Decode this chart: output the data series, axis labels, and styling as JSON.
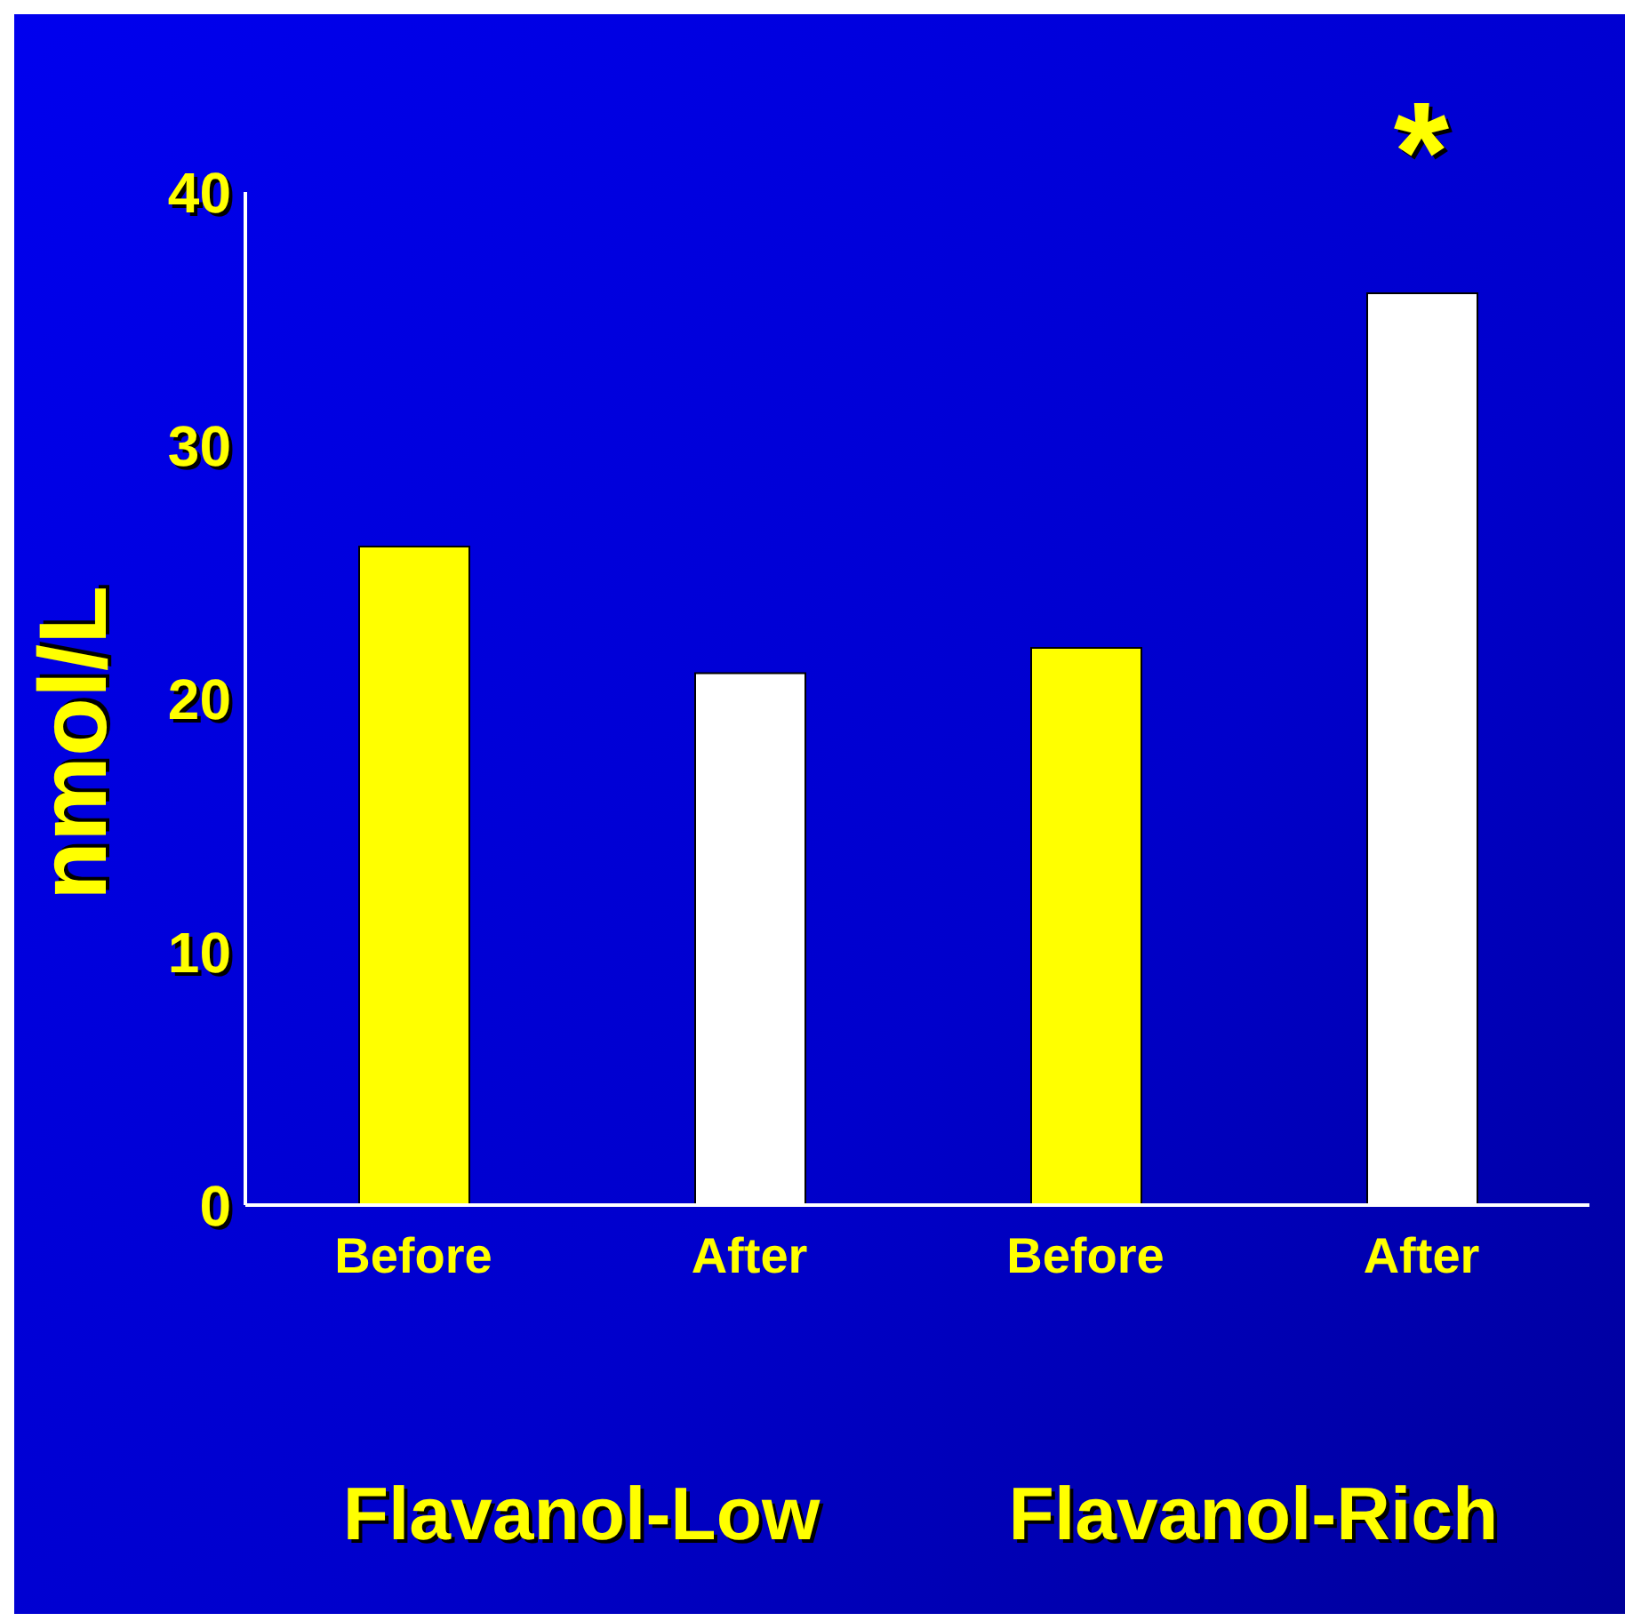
{
  "chart_data": {
    "type": "bar",
    "ylabel": "nmol/L",
    "categories": [
      "Before",
      "After",
      "Before",
      "After"
    ],
    "values": [
      26,
      21,
      22,
      36
    ],
    "colors": [
      "#ffff00",
      "#ffffff",
      "#ffff00",
      "#ffffff"
    ],
    "ylim": [
      0,
      40
    ],
    "yticks": [
      0,
      10,
      20,
      30,
      40
    ],
    "grid": false,
    "legend": false,
    "annotations": [
      "Flavanol-Low",
      "Flavanol-Rich",
      "*"
    ]
  }
}
